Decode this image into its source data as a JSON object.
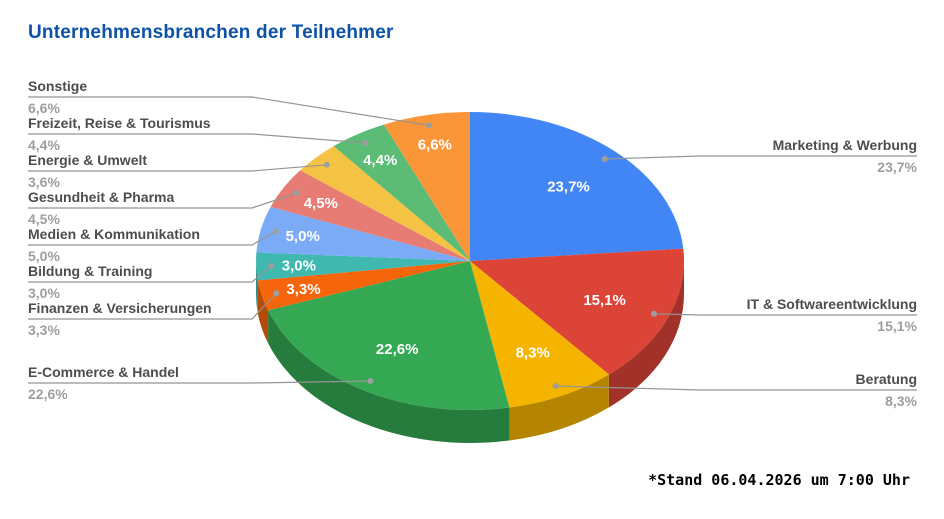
{
  "title": "Unternehmensbranchen der Teilnehmer",
  "footnote": "*Stand 06.04.2026 um 7:00 Uhr",
  "colors": {
    "title": "#0d52a8",
    "callout_name": "#4d4d4d",
    "callout_percent": "#9e9e9e",
    "leader_line": "#949494",
    "leader_dot": "#9e9e9e",
    "inner_label": "#ffffff",
    "background": "#ffffff"
  },
  "chart_data": {
    "type": "pie",
    "is_3d": true,
    "title": "Unternehmensbranchen der Teilnehmer",
    "unit": "%",
    "start_angle": "12 o'clock",
    "direction": "clockwise",
    "legend_position": "callout-labels",
    "series": [
      {
        "label": "Marketing & Werbung",
        "value": 23.7,
        "pct_label": "23,7%",
        "color": "#4285F4",
        "inner_label_visible": true
      },
      {
        "label": "IT & Softwareentwicklung",
        "value": 15.1,
        "pct_label": "15,1%",
        "color": "#DB4437",
        "inner_label_visible": true
      },
      {
        "label": "Beratung",
        "value": 8.3,
        "pct_label": "8,3%",
        "color": "#F4B400",
        "inner_label_visible": true
      },
      {
        "label": "E-Commerce & Handel",
        "value": 22.6,
        "pct_label": "22,6%",
        "color": "#34A853",
        "inner_label_visible": true
      },
      {
        "label": "Finanzen & Versicherungen",
        "value": 3.3,
        "pct_label": "3,3%",
        "color": "#F4650C",
        "inner_label_visible": true
      },
      {
        "label": "Bildung & Training",
        "value": 3.0,
        "pct_label": "3,0%",
        "color": "#3FB8B0",
        "inner_label_visible": true
      },
      {
        "label": "Medien & Kommunikation",
        "value": 5.0,
        "pct_label": "5,0%",
        "color": "#7BAAF7",
        "inner_label_visible": true
      },
      {
        "label": "Gesundheit & Pharma",
        "value": 4.5,
        "pct_label": "4,5%",
        "color": "#E67C73",
        "inner_label_visible": true
      },
      {
        "label": "Energie & Umwelt",
        "value": 3.6,
        "pct_label": "3,6%",
        "color": "#F5C344",
        "inner_label_visible": false
      },
      {
        "label": "Freizeit, Reise & Tourismus",
        "value": 4.4,
        "pct_label": "4,4%",
        "color": "#5CBB74",
        "inner_label_visible": true
      },
      {
        "label": "Sonstige",
        "value": 6.6,
        "pct_label": "6,6%",
        "color": "#FA9638",
        "inner_label_visible": true
      }
    ]
  }
}
